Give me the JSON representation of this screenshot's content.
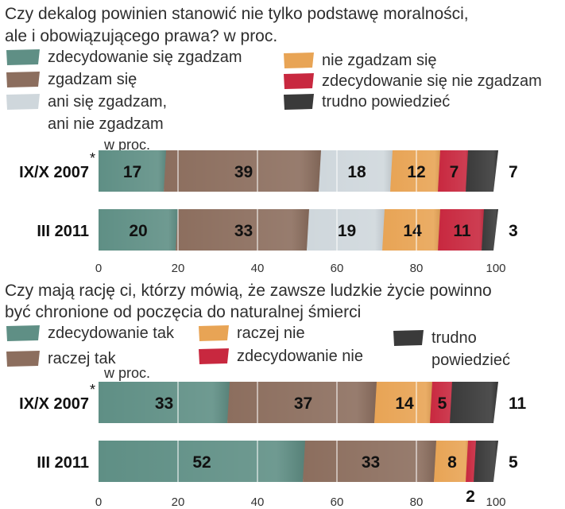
{
  "colors": {
    "zdecydowanie_tak": "#5f8f85",
    "raczej_tak": "#8c6e5e",
    "neutral": "#cfd7dc",
    "raczej_nie": "#e8a455",
    "zdecydowanie_nie": "#c8283f",
    "trudno": "#3a3a3a"
  },
  "chart_data": [
    {
      "type": "bar",
      "orientation": "horizontal-stacked",
      "title_lines": [
        "Czy dekalog powinien stanowić nie tylko podstawę moralności,",
        "ale i obowiązującego prawa?   w proc."
      ],
      "unit": "w proc.",
      "categories": [
        "IX/X 2007",
        "III 2011"
      ],
      "category_marks": [
        "*",
        ""
      ],
      "series": [
        {
          "name": "zdecydowanie się zgadzam",
          "color_key": "zdecydowanie_tak",
          "values": [
            17,
            20
          ]
        },
        {
          "name": "zgadzam się",
          "color_key": "raczej_tak",
          "values": [
            39,
            33
          ]
        },
        {
          "name": "ani się zgadzam, ani nie zgadzam",
          "color_key": "neutral",
          "values": [
            18,
            19
          ]
        },
        {
          "name": "nie zgadzam się",
          "color_key": "raczej_nie",
          "values": [
            12,
            14
          ]
        },
        {
          "name": "zdecydowanie się nie zgadzam",
          "color_key": "zdecydowanie_nie",
          "values": [
            7,
            11
          ]
        },
        {
          "name": "trudno powiedzieć",
          "color_key": "trudno",
          "values": [
            7,
            3
          ]
        }
      ],
      "xlim": [
        0,
        100
      ],
      "xticks": [
        "0",
        "20",
        "40",
        "60",
        "80",
        "100"
      ],
      "legend": {
        "placement": "top",
        "items": [
          {
            "lines": [
              "zdecydowanie się zgadzam"
            ],
            "color_key": "zdecydowanie_tak"
          },
          {
            "lines": [
              "zgadzam się"
            ],
            "color_key": "raczej_tak"
          },
          {
            "lines": [
              "ani się zgadzam,",
              "ani nie zgadzam"
            ],
            "color_key": "neutral"
          },
          {
            "lines": [
              "nie zgadzam się"
            ],
            "color_key": "raczej_nie"
          },
          {
            "lines": [
              "zdecydowanie się nie zgadzam"
            ],
            "color_key": "zdecydowanie_nie"
          },
          {
            "lines": [
              "trudno powiedzieć"
            ],
            "color_key": "trudno"
          }
        ]
      }
    },
    {
      "type": "bar",
      "orientation": "horizontal-stacked",
      "title_lines": [
        "Czy mają rację ci, którzy mówią, że zawsze ludzkie życie powinno",
        "być chronione od poczęcia do naturalnej śmierci"
      ],
      "unit": "w proc.",
      "categories": [
        "IX/X 2007",
        "III 2011"
      ],
      "category_marks": [
        "*",
        ""
      ],
      "series": [
        {
          "name": "zdecydowanie tak",
          "color_key": "zdecydowanie_tak",
          "values": [
            33,
            52
          ]
        },
        {
          "name": "raczej tak",
          "color_key": "raczej_tak",
          "values": [
            37,
            33
          ]
        },
        {
          "name": "raczej nie",
          "color_key": "raczej_nie",
          "values": [
            14,
            8
          ]
        },
        {
          "name": "zdecydowanie nie",
          "color_key": "zdecydowanie_nie",
          "values": [
            5,
            2
          ]
        },
        {
          "name": "trudno powiedzieć",
          "color_key": "trudno",
          "values": [
            11,
            5
          ]
        }
      ],
      "xlim": [
        0,
        100
      ],
      "xticks": [
        "0",
        "20",
        "40",
        "60",
        "80",
        "100"
      ],
      "legend": {
        "placement": "top",
        "items": [
          {
            "lines": [
              "zdecydowanie tak"
            ],
            "color_key": "zdecydowanie_tak"
          },
          {
            "lines": [
              "raczej tak"
            ],
            "color_key": "raczej_tak"
          },
          {
            "lines": [
              "raczej nie"
            ],
            "color_key": "raczej_nie"
          },
          {
            "lines": [
              "zdecydowanie nie"
            ],
            "color_key": "zdecydowanie_nie"
          },
          {
            "lines": [
              "trudno",
              "powiedzieć"
            ],
            "color_key": "trudno"
          }
        ]
      }
    }
  ]
}
